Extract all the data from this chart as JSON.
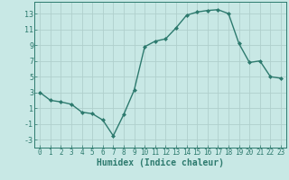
{
  "x": [
    0,
    1,
    2,
    3,
    4,
    5,
    6,
    7,
    8,
    9,
    10,
    11,
    12,
    13,
    14,
    15,
    16,
    17,
    18,
    19,
    20,
    21,
    22,
    23
  ],
  "y": [
    3,
    2,
    1.8,
    1.5,
    0.5,
    0.3,
    -0.5,
    -2.5,
    0.2,
    3.3,
    8.8,
    9.5,
    9.8,
    11.2,
    12.8,
    13.2,
    13.4,
    13.5,
    13.0,
    9.2,
    6.8,
    7.0,
    5.0,
    4.8
  ],
  "line_color": "#2d7a6e",
  "marker": "D",
  "markersize": 2.0,
  "linewidth": 1.0,
  "bg_color": "#c8e8e5",
  "grid_color": "#b0cfcc",
  "xlabel": "Humidex (Indice chaleur)",
  "xlabel_fontsize": 7,
  "tick_fontsize": 5.5,
  "ytick_fontsize": 6.0,
  "yticks": [
    -3,
    -1,
    1,
    3,
    5,
    7,
    9,
    11,
    13
  ],
  "xticks": [
    0,
    1,
    2,
    3,
    4,
    5,
    6,
    7,
    8,
    9,
    10,
    11,
    12,
    13,
    14,
    15,
    16,
    17,
    18,
    19,
    20,
    21,
    22,
    23
  ],
  "ylim": [
    -4,
    14.5
  ],
  "xlim": [
    -0.5,
    23.5
  ]
}
